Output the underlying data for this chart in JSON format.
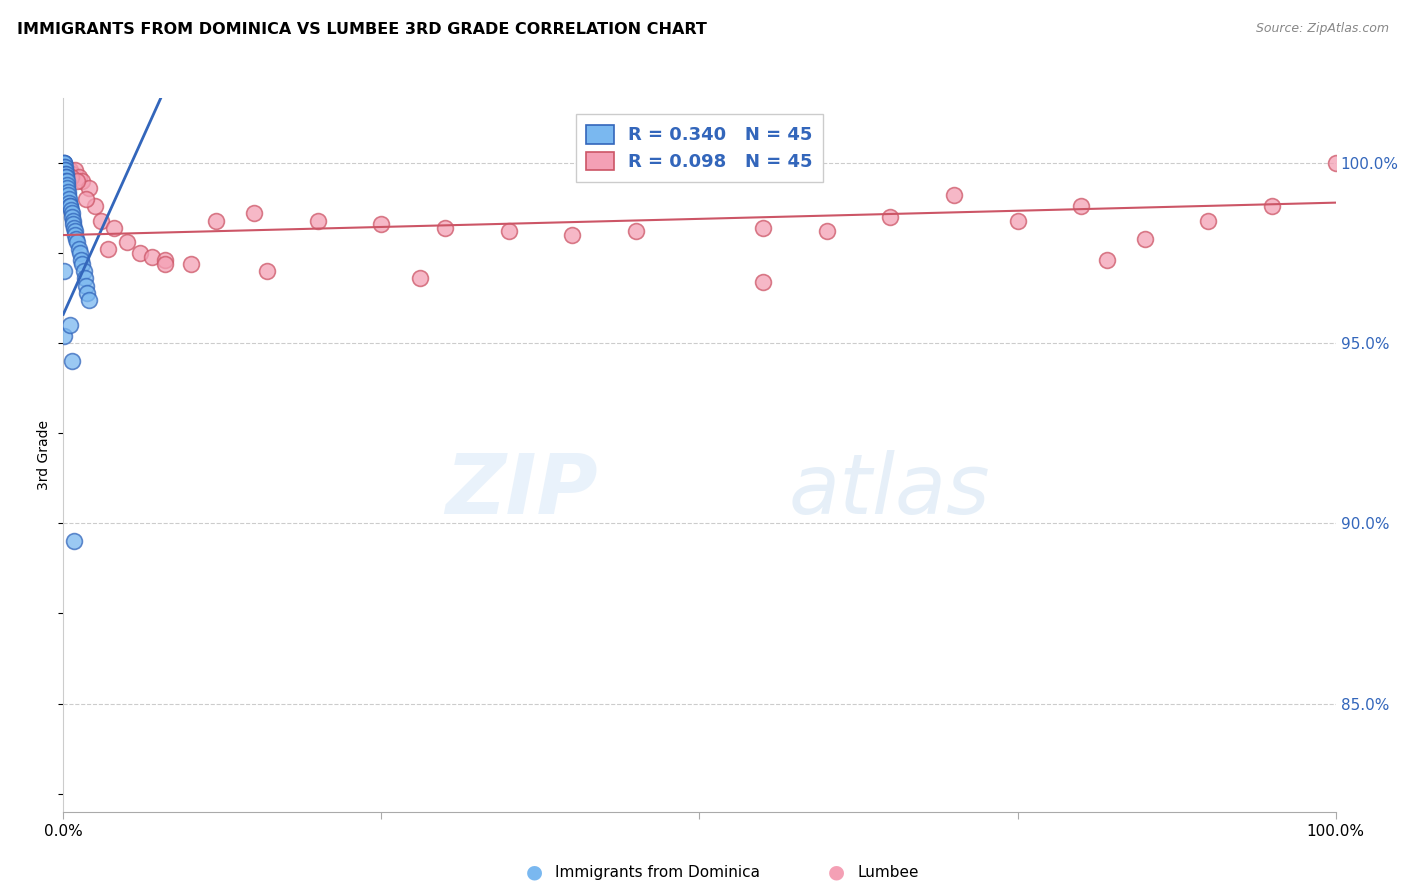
{
  "title": "IMMIGRANTS FROM DOMINICA VS LUMBEE 3RD GRADE CORRELATION CHART",
  "source": "Source: ZipAtlas.com",
  "ylabel": "3rd Grade",
  "color_blue": "#7ab8f0",
  "color_pink": "#f4a0b5",
  "line_blue": "#3366bb",
  "line_pink": "#cc5566",
  "xlim": [
    0.0,
    1.0
  ],
  "ylim": [
    0.82,
    1.018
  ],
  "yticks": [
    0.85,
    0.9,
    0.95,
    1.0
  ],
  "ytick_labels": [
    "85.0%",
    "90.0%",
    "95.0%",
    "100.0%"
  ],
  "watermark_zip": "ZIP",
  "watermark_atlas": "atlas",
  "legend_entries": [
    {
      "r": "R = 0.340",
      "n": "N = 45"
    },
    {
      "r": "R = 0.098",
      "n": "N = 45"
    }
  ],
  "dominica_x": [
    0.0004,
    0.0006,
    0.0007,
    0.0008,
    0.001,
    0.0012,
    0.0013,
    0.0015,
    0.0018,
    0.002,
    0.0022,
    0.0025,
    0.0028,
    0.003,
    0.0033,
    0.0036,
    0.004,
    0.0043,
    0.0046,
    0.005,
    0.0055,
    0.006,
    0.0065,
    0.007,
    0.0075,
    0.008,
    0.0085,
    0.009,
    0.0095,
    0.01,
    0.011,
    0.012,
    0.013,
    0.014,
    0.015,
    0.016,
    0.017,
    0.018,
    0.019,
    0.02,
    0.0003,
    0.0005,
    0.005,
    0.007,
    0.0085
  ],
  "dominica_y": [
    1.0,
    1.0,
    1.0,
    0.999,
    0.999,
    0.998,
    0.998,
    0.997,
    0.997,
    0.996,
    0.996,
    0.995,
    0.995,
    0.994,
    0.993,
    0.992,
    0.991,
    0.99,
    0.989,
    0.988,
    0.988,
    0.987,
    0.986,
    0.985,
    0.984,
    0.983,
    0.982,
    0.981,
    0.98,
    0.979,
    0.978,
    0.976,
    0.975,
    0.973,
    0.972,
    0.97,
    0.968,
    0.966,
    0.964,
    0.962,
    0.952,
    0.97,
    0.955,
    0.945,
    0.895
  ],
  "lumbee_x": [
    0.001,
    0.002,
    0.005,
    0.007,
    0.009,
    0.012,
    0.015,
    0.02,
    0.025,
    0.03,
    0.04,
    0.05,
    0.06,
    0.07,
    0.08,
    0.1,
    0.12,
    0.15,
    0.2,
    0.25,
    0.3,
    0.35,
    0.4,
    0.45,
    0.5,
    0.55,
    0.6,
    0.65,
    0.7,
    0.75,
    0.8,
    0.85,
    0.9,
    0.95,
    1.0,
    0.003,
    0.006,
    0.011,
    0.018,
    0.035,
    0.08,
    0.16,
    0.28,
    0.55,
    0.82
  ],
  "lumbee_y": [
    0.999,
    0.998,
    0.998,
    0.997,
    0.998,
    0.996,
    0.995,
    0.993,
    0.988,
    0.984,
    0.982,
    0.978,
    0.975,
    0.974,
    0.973,
    0.972,
    0.984,
    0.986,
    0.984,
    0.983,
    0.982,
    0.981,
    0.98,
    0.981,
    0.998,
    0.982,
    0.981,
    0.985,
    0.991,
    0.984,
    0.988,
    0.979,
    0.984,
    0.988,
    1.0,
    0.997,
    0.996,
    0.995,
    0.99,
    0.976,
    0.972,
    0.97,
    0.968,
    0.967,
    0.973
  ]
}
